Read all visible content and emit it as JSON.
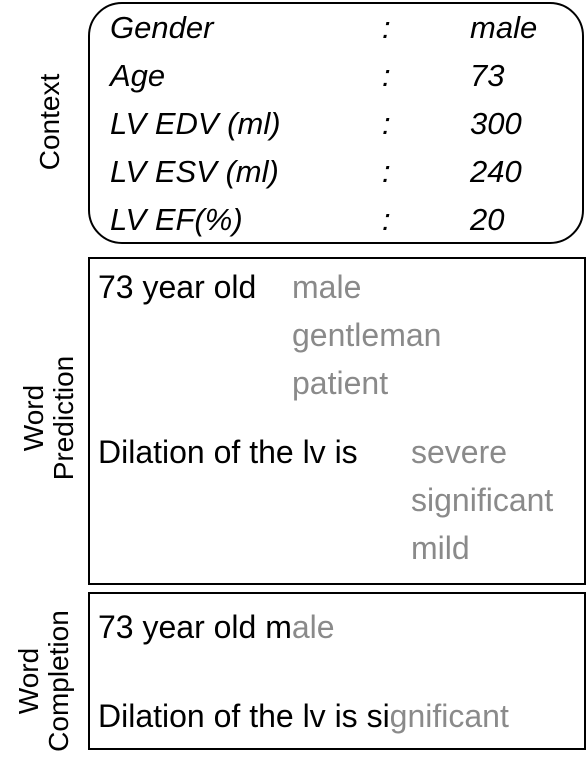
{
  "labels": {
    "context": "Context",
    "prediction_line1": "Word",
    "prediction_line2": "Prediction",
    "completion_line1": "Word",
    "completion_line2": "Completion"
  },
  "context": {
    "rows": [
      {
        "key": "Gender",
        "colon": ":",
        "value": "male"
      },
      {
        "key": "Age",
        "colon": ":",
        "value": "73"
      },
      {
        "key": "LV EDV (ml)",
        "colon": ":",
        "value": "300"
      },
      {
        "key": "LV ESV (ml)",
        "colon": ":",
        "value": "240"
      },
      {
        "key": "LV EF(%)",
        "colon": ":",
        "value": "20"
      }
    ]
  },
  "prediction": {
    "example1": {
      "prefix": "73 year old",
      "candidates": [
        "male",
        "gentleman",
        "patient"
      ]
    },
    "example2": {
      "prefix": "Dilation of the lv is",
      "candidates": [
        "severe",
        "significant",
        "mild"
      ]
    }
  },
  "completion": {
    "example1": {
      "typed": "73 year old m",
      "completed": "ale"
    },
    "example2": {
      "typed": "Dilation of the lv is si",
      "completed": "gnificant"
    }
  },
  "colors": {
    "suggestion": "#8a8a8a",
    "text": "#000000",
    "border": "#000000"
  }
}
